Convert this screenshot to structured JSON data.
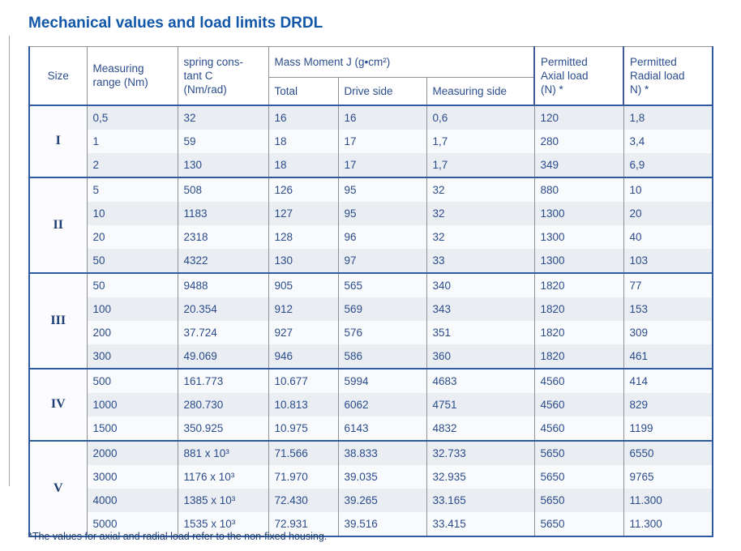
{
  "title": "Mechanical values and load limits DRDL",
  "footnote": "*The values for axial and radial load refer to the non-fixed housing.",
  "colors": {
    "title_blue": "#1257a8",
    "frame_blue": "#2e5a9f",
    "grid_gray": "#8e9094",
    "stripe_gray": "#eaedf1",
    "stripe_light": "#f9fafc",
    "text_navy": "#2b4c8c"
  },
  "table": {
    "headers": {
      "size": "Size",
      "measuring_range": [
        "Measuring",
        "range (Nm)"
      ],
      "spring_constant": [
        "spring cons-",
        "tant C",
        "(Nm/rad)"
      ],
      "mass_moment": "Mass Moment J (g•cm²)",
      "sub": [
        "Total",
        "Drive side",
        "Measuring side"
      ],
      "axial": [
        "Permitted",
        "Axial load",
        "(N) *"
      ],
      "radial": [
        "Permitted",
        "Radial load",
        "N) *"
      ]
    },
    "groups": [
      {
        "size": "I",
        "rows": [
          [
            "0,5",
            "32",
            "16",
            "16",
            "0,6",
            "120",
            "1,8"
          ],
          [
            "1",
            "59",
            "18",
            "17",
            "1,7",
            "280",
            "3,4"
          ],
          [
            "2",
            "130",
            "18",
            "17",
            "1,7",
            "349",
            "6,9"
          ]
        ]
      },
      {
        "size": "II",
        "rows": [
          [
            "5",
            "508",
            "126",
            "95",
            "32",
            "880",
            "10"
          ],
          [
            "10",
            "1183",
            "127",
            "95",
            "32",
            "1300",
            "20"
          ],
          [
            "20",
            "2318",
            "128",
            "96",
            "32",
            "1300",
            "40"
          ],
          [
            "50",
            "4322",
            "130",
            "97",
            "33",
            "1300",
            "103"
          ]
        ]
      },
      {
        "size": "III",
        "rows": [
          [
            "50",
            "9488",
            "905",
            "565",
            "340",
            "1820",
            "77"
          ],
          [
            "100",
            "20.354",
            "912",
            "569",
            "343",
            "1820",
            "153"
          ],
          [
            "200",
            "37.724",
            "927",
            "576",
            "351",
            "1820",
            "309"
          ],
          [
            "300",
            "49.069",
            "946",
            "586",
            "360",
            "1820",
            "461"
          ]
        ]
      },
      {
        "size": "IV",
        "rows": [
          [
            "500",
            "161.773",
            "10.677",
            "5994",
            "4683",
            "4560",
            "414"
          ],
          [
            "1000",
            "280.730",
            "10.813",
            "6062",
            "4751",
            "4560",
            "829"
          ],
          [
            "1500",
            "350.925",
            "10.975",
            "6143",
            "4832",
            "4560",
            "1199"
          ]
        ]
      },
      {
        "size": "V",
        "rows": [
          [
            "2000",
            "881 x 10³",
            "71.566",
            "38.833",
            "32.733",
            "5650",
            "6550"
          ],
          [
            "3000",
            "1176 x 10³",
            "71.970",
            "39.035",
            "32.935",
            "5650",
            "9765"
          ],
          [
            "4000",
            "1385 x 10³",
            "72.430",
            "39.265",
            "33.165",
            "5650",
            "11.300"
          ],
          [
            "5000",
            "1535 x 10³",
            "72.931",
            "39.516",
            "33.415",
            "5650",
            "11.300"
          ]
        ]
      }
    ]
  }
}
